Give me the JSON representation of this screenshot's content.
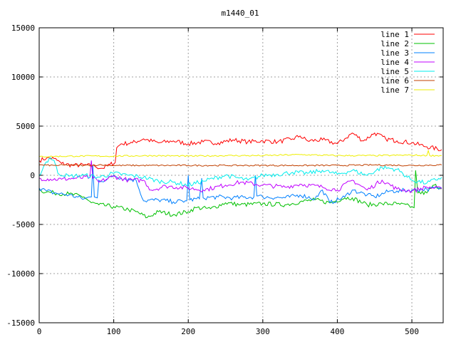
{
  "chart_data": {
    "type": "line",
    "title": "m1440_01",
    "xlabel": "",
    "ylabel": "",
    "xlim": [
      0,
      542
    ],
    "ylim": [
      -15000,
      15000
    ],
    "xticks": [
      0,
      100,
      200,
      300,
      400,
      500
    ],
    "yticks": [
      -15000,
      -10000,
      -5000,
      0,
      5000,
      10000,
      15000
    ],
    "grid": true,
    "legend_position": "top-right",
    "series": [
      {
        "name": "line 1",
        "color": "#ff0000",
        "x": [
          0,
          10,
          20,
          30,
          45,
          60,
          75,
          85,
          95,
          102,
          104,
          110,
          125,
          140,
          160,
          180,
          200,
          220,
          240,
          260,
          280,
          300,
          320,
          340,
          350,
          360,
          380,
          400,
          410,
          420,
          435,
          450,
          465,
          480,
          500,
          520,
          540
        ],
        "y": [
          1500,
          1750,
          1700,
          1200,
          1000,
          1050,
          900,
          700,
          1100,
          1300,
          2800,
          3200,
          3300,
          3700,
          3300,
          3500,
          3200,
          3400,
          3300,
          3600,
          3400,
          3500,
          3400,
          3700,
          4000,
          3500,
          3600,
          3200,
          3700,
          4300,
          3500,
          4300,
          3700,
          3500,
          3300,
          2900,
          2600
        ]
      },
      {
        "name": "line 2",
        "color": "#00c000",
        "x": [
          0,
          10,
          20,
          40,
          60,
          70,
          80,
          100,
          120,
          130,
          145,
          160,
          180,
          200,
          210,
          230,
          250,
          270,
          300,
          330,
          350,
          370,
          390,
          410,
          420,
          440,
          460,
          480,
          500,
          503,
          505,
          508,
          520,
          530,
          540
        ],
        "y": [
          -1500,
          -1700,
          -1800,
          -1900,
          -2200,
          -2800,
          -3000,
          -3200,
          -3500,
          -3700,
          -4300,
          -3700,
          -4000,
          -3700,
          -3300,
          -3400,
          -2800,
          -3000,
          -2900,
          -3000,
          -2700,
          -2500,
          -2800,
          -2300,
          -2300,
          -3000,
          -2900,
          -2900,
          -3200,
          -3300,
          500,
          -1800,
          -1800,
          -1000,
          -1300
        ]
      },
      {
        "name": "line 3",
        "color": "#0080ff",
        "x": [
          0,
          10,
          20,
          40,
          60,
          70,
          72,
          74,
          78,
          80,
          90,
          100,
          110,
          130,
          140,
          160,
          180,
          198,
          200,
          202,
          215,
          218,
          220,
          240,
          260,
          288,
          290,
          292,
          300,
          330,
          350,
          370,
          380,
          390,
          410,
          420,
          440,
          450,
          470,
          480,
          500,
          520,
          540
        ],
        "y": [
          -1300,
          -1600,
          -1800,
          -2000,
          -2400,
          -2200,
          1000,
          -2200,
          -2300,
          -500,
          -500,
          0,
          -300,
          -500,
          -2600,
          -2500,
          -2700,
          -2600,
          0,
          -2500,
          -2400,
          -300,
          -2300,
          -2200,
          -2300,
          -2200,
          0,
          -2100,
          -2200,
          -2300,
          -2000,
          -2400,
          -1500,
          -2800,
          -2200,
          -1500,
          -2000,
          -2200,
          -1600,
          -1600,
          -1500,
          -1400,
          -1300
        ]
      },
      {
        "name": "line 4",
        "color": "#c000ff",
        "x": [
          0,
          15,
          30,
          50,
          68,
          70,
          72,
          80,
          100,
          120,
          140,
          150,
          170,
          200,
          220,
          250,
          270,
          300,
          330,
          350,
          380,
          400,
          420,
          440,
          460,
          480,
          500,
          520,
          540
        ],
        "y": [
          -300,
          -400,
          -400,
          -300,
          -200,
          1500,
          -300,
          -700,
          -100,
          -500,
          -500,
          -1500,
          -1100,
          -1300,
          -1500,
          -1000,
          -700,
          -1000,
          -1200,
          -900,
          -1200,
          -1500,
          -500,
          -1500,
          -500,
          -1400,
          -1600,
          -1200,
          -1400
        ]
      },
      {
        "name": "line 5",
        "color": "#00eeee",
        "x": [
          0,
          8,
          15,
          20,
          25,
          40,
          60,
          80,
          100,
          120,
          140,
          160,
          180,
          200,
          220,
          250,
          280,
          300,
          320,
          340,
          360,
          380,
          400,
          420,
          440,
          460,
          480,
          500,
          520,
          540
        ],
        "y": [
          0,
          1200,
          1800,
          1500,
          200,
          -100,
          0,
          -200,
          200,
          0,
          -200,
          -600,
          -700,
          -1000,
          -600,
          0,
          -500,
          0,
          100,
          300,
          200,
          500,
          100,
          500,
          0,
          800,
          600,
          -500,
          -800,
          -200
        ]
      },
      {
        "name": "line 6",
        "color": "#c04000",
        "x": [
          0,
          20,
          40,
          60,
          80,
          100,
          150,
          200,
          250,
          300,
          350,
          400,
          450,
          500,
          540
        ],
        "y": [
          1050,
          1000,
          1050,
          1000,
          1050,
          1000,
          1000,
          1000,
          1000,
          1000,
          1000,
          1000,
          1050,
          1000,
          1050
        ]
      },
      {
        "name": "line 7",
        "color": "#eeee00",
        "x": [
          0,
          50,
          100,
          150,
          200,
          250,
          300,
          350,
          400,
          450,
          500,
          520,
          522,
          524,
          540
        ],
        "y": [
          1900,
          1950,
          1950,
          2000,
          1950,
          2000,
          2000,
          2100,
          2000,
          2000,
          2050,
          2000,
          2500,
          2000,
          2000
        ]
      }
    ]
  }
}
